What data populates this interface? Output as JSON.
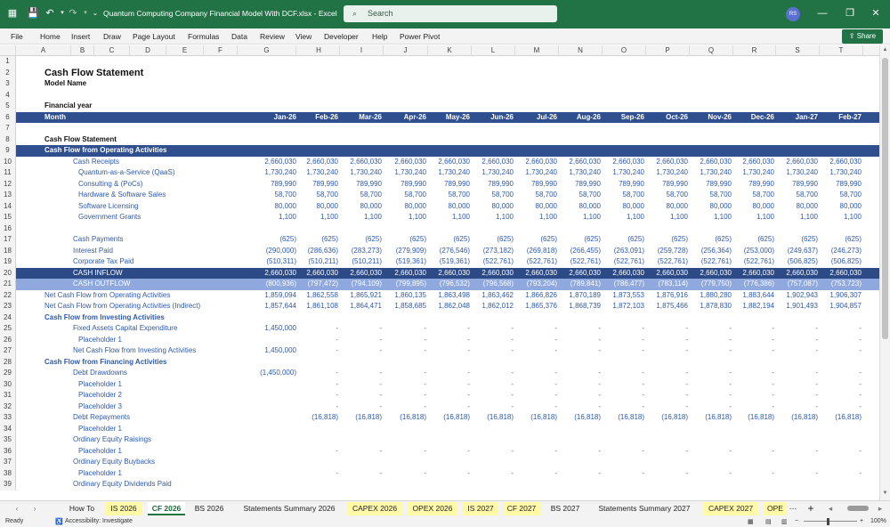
{
  "window": {
    "title": "Quantum Computing Company Financial Model With DCF.xlsx  -  Excel",
    "search_placeholder": "Search",
    "user_initials": "RS"
  },
  "menu": [
    "File",
    "Home",
    "Insert",
    "Draw",
    "Page Layout",
    "Formulas",
    "Data",
    "Review",
    "View",
    "Developer",
    "Help",
    "Power Pivot"
  ],
  "share_label": "Share",
  "columns": [
    "A",
    "B",
    "C",
    "D",
    "E",
    "F",
    "G",
    "H",
    "I",
    "J",
    "K",
    "L",
    "M",
    "N",
    "O",
    "P",
    "Q",
    "R",
    "S",
    "T"
  ],
  "months": [
    "Jan-26",
    "Feb-26",
    "Mar-26",
    "Apr-26",
    "May-26",
    "Jun-26",
    "Jul-26",
    "Aug-26",
    "Sep-26",
    "Oct-26",
    "Nov-26",
    "Dec-26",
    "Jan-27",
    "Feb-27"
  ],
  "rows": [
    {
      "n": "1",
      "label": "",
      "indent": 0,
      "style": "",
      "values": []
    },
    {
      "n": "2",
      "label": "Cash Flow Statement",
      "indent": 0,
      "style": "title",
      "values": []
    },
    {
      "n": "3",
      "label": "Model Name",
      "indent": 0,
      "style": "subtitle",
      "values": []
    },
    {
      "n": "4",
      "label": "",
      "indent": 0,
      "style": "",
      "values": []
    },
    {
      "n": "5",
      "label": "Financial year",
      "indent": 2,
      "style": "boldlabel",
      "values": []
    },
    {
      "n": "6",
      "label": "Month",
      "indent": 2,
      "style": "header",
      "values": []
    },
    {
      "n": "7",
      "label": "",
      "indent": 0,
      "style": "",
      "values": []
    },
    {
      "n": "8",
      "label": "Cash Flow Statement",
      "indent": 2,
      "style": "boldlabel",
      "values": []
    },
    {
      "n": "9",
      "label": "Cash Flow from Operating Activities",
      "indent": 2,
      "style": "section",
      "values": []
    },
    {
      "n": "10",
      "label": "Cash Receipts",
      "indent": 3,
      "style": "blue",
      "values": [
        "2,660,030",
        "2,660,030",
        "2,660,030",
        "2,660,030",
        "2,660,030",
        "2,660,030",
        "2,660,030",
        "2,660,030",
        "2,660,030",
        "2,660,030",
        "2,660,030",
        "2,660,030",
        "2,660,030",
        "2,660,030"
      ]
    },
    {
      "n": "11",
      "label": "Quantum-as-a-Service (QaaS)",
      "indent": 4,
      "style": "blue",
      "values": [
        "1,730,240",
        "1,730,240",
        "1,730,240",
        "1,730,240",
        "1,730,240",
        "1,730,240",
        "1,730,240",
        "1,730,240",
        "1,730,240",
        "1,730,240",
        "1,730,240",
        "1,730,240",
        "1,730,240",
        "1,730,240"
      ]
    },
    {
      "n": "12",
      "label": "Consulting & (PoCs)",
      "indent": 4,
      "style": "blue",
      "values": [
        "789,990",
        "789,990",
        "789,990",
        "789,990",
        "789,990",
        "789,990",
        "789,990",
        "789,990",
        "789,990",
        "789,990",
        "789,990",
        "789,990",
        "789,990",
        "789,990"
      ]
    },
    {
      "n": "13",
      "label": "Hardware & Software Sales",
      "indent": 4,
      "style": "blue",
      "values": [
        "58,700",
        "58,700",
        "58,700",
        "58,700",
        "58,700",
        "58,700",
        "58,700",
        "58,700",
        "58,700",
        "58,700",
        "58,700",
        "58,700",
        "58,700",
        "58,700"
      ]
    },
    {
      "n": "14",
      "label": "Software Licensing",
      "indent": 4,
      "style": "blue",
      "values": [
        "80,000",
        "80,000",
        "80,000",
        "80,000",
        "80,000",
        "80,000",
        "80,000",
        "80,000",
        "80,000",
        "80,000",
        "80,000",
        "80,000",
        "80,000",
        "80,000"
      ]
    },
    {
      "n": "15",
      "label": "Government Grants",
      "indent": 4,
      "style": "blue",
      "values": [
        "1,100",
        "1,100",
        "1,100",
        "1,100",
        "1,100",
        "1,100",
        "1,100",
        "1,100",
        "1,100",
        "1,100",
        "1,100",
        "1,100",
        "1,100",
        "1,100"
      ]
    },
    {
      "n": "16",
      "label": "",
      "indent": 0,
      "style": "",
      "values": []
    },
    {
      "n": "17",
      "label": "Cash Payments",
      "indent": 3,
      "style": "blue",
      "values": [
        "(625)",
        "(625)",
        "(625)",
        "(625)",
        "(625)",
        "(625)",
        "(625)",
        "(625)",
        "(625)",
        "(625)",
        "(625)",
        "(625)",
        "(625)",
        "(625)"
      ]
    },
    {
      "n": "18",
      "label": "Interest Paid",
      "indent": 3,
      "style": "blue",
      "values": [
        "(290,000)",
        "(286,636)",
        "(283,273)",
        "(279,909)",
        "(276,546)",
        "(273,182)",
        "(269,818)",
        "(266,455)",
        "(263,091)",
        "(259,728)",
        "(256,364)",
        "(253,000)",
        "(249,637)",
        "(246,273)"
      ]
    },
    {
      "n": "19",
      "label": "Corporate Tax Paid",
      "indent": 3,
      "style": "blue",
      "values": [
        "(510,311)",
        "(510,211)",
        "(510,211)",
        "(519,361)",
        "(519,361)",
        "(522,761)",
        "(522,761)",
        "(522,761)",
        "(522,761)",
        "(522,761)",
        "(522,761)",
        "(522,761)",
        "(506,825)",
        "(506,825)"
      ]
    },
    {
      "n": "20",
      "label": "CASH INFLOW",
      "indent": 3,
      "style": "dark",
      "values": [
        "2,660,030",
        "2,660,030",
        "2,660,030",
        "2,660,030",
        "2,660,030",
        "2,660,030",
        "2,660,030",
        "2,660,030",
        "2,660,030",
        "2,660,030",
        "2,660,030",
        "2,660,030",
        "2,660,030",
        "2,660,030"
      ]
    },
    {
      "n": "21",
      "label": "CASH OUTFLOW",
      "indent": 3,
      "style": "light",
      "values": [
        "(800,936)",
        "(797,472)",
        "(794,109)",
        "(799,895)",
        "(796,532)",
        "(796,568)",
        "(793,204)",
        "(789,841)",
        "(786,477)",
        "(783,114)",
        "(779,750)",
        "(776,386)",
        "(757,087)",
        "(753,723)"
      ]
    },
    {
      "n": "22",
      "label": "Net Cash Flow from Operating Activities",
      "indent": 2,
      "style": "blue",
      "values": [
        "1,859,094",
        "1,862,558",
        "1,865,921",
        "1,860,135",
        "1,863,498",
        "1,863,462",
        "1,866,826",
        "1,870,189",
        "1,873,553",
        "1,876,916",
        "1,880,280",
        "1,883,644",
        "1,902,943",
        "1,906,307"
      ]
    },
    {
      "n": "23",
      "label": "Net Cash Flow from Operating Activities (Indirect)",
      "indent": 2,
      "style": "blue",
      "values": [
        "1,857,644",
        "1,861,108",
        "1,864,471",
        "1,858,685",
        "1,862,048",
        "1,862,012",
        "1,865,376",
        "1,868,739",
        "1,872,103",
        "1,875,466",
        "1,878,830",
        "1,882,194",
        "1,901,493",
        "1,904,857"
      ]
    },
    {
      "n": "24",
      "label": "Cash Flow from Investing Activities",
      "indent": 2,
      "style": "bluebold",
      "values": []
    },
    {
      "n": "25",
      "label": "Fixed Assets Capital Expenditure",
      "indent": 3,
      "style": "blue",
      "values": [
        "1,450,000",
        "-",
        "-",
        "-",
        "-",
        "-",
        "-",
        "-",
        "-",
        "-",
        "-",
        "-",
        "-",
        "-"
      ]
    },
    {
      "n": "26",
      "label": "Placeholder 1",
      "indent": 4,
      "style": "blue",
      "values": [
        "",
        "-",
        "-",
        "-",
        "-",
        "-",
        "-",
        "-",
        "-",
        "-",
        "-",
        "-",
        "-",
        "-"
      ]
    },
    {
      "n": "27",
      "label": "Net Cash Flow from Investing Activities",
      "indent": 3,
      "style": "blue",
      "values": [
        "1,450,000",
        "-",
        "-",
        "-",
        "-",
        "-",
        "-",
        "-",
        "-",
        "-",
        "-",
        "-",
        "-",
        "-"
      ]
    },
    {
      "n": "28",
      "label": "Cash Flow from Financing Activities",
      "indent": 2,
      "style": "bluebold",
      "values": []
    },
    {
      "n": "29",
      "label": "Debt Drawdowns",
      "indent": 3,
      "style": "blue",
      "values": [
        "(1,450,000)",
        "-",
        "-",
        "-",
        "-",
        "-",
        "-",
        "-",
        "-",
        "-",
        "-",
        "-",
        "-",
        "-"
      ]
    },
    {
      "n": "30",
      "label": "Placeholder 1",
      "indent": 4,
      "style": "blue",
      "values": [
        "",
        "-",
        "-",
        "-",
        "-",
        "-",
        "-",
        "-",
        "-",
        "-",
        "-",
        "-",
        "-",
        "-"
      ]
    },
    {
      "n": "31",
      "label": "Placeholder 2",
      "indent": 4,
      "style": "blue",
      "values": [
        "",
        "-",
        "-",
        "-",
        "-",
        "-",
        "-",
        "-",
        "-",
        "-",
        "-",
        "-",
        "-",
        "-"
      ]
    },
    {
      "n": "32",
      "label": "Placeholder 3",
      "indent": 4,
      "style": "blue",
      "values": [
        "",
        "-",
        "-",
        "-",
        "-",
        "-",
        "-",
        "-",
        "-",
        "-",
        "-",
        "-",
        "-",
        "-"
      ]
    },
    {
      "n": "33",
      "label": "Debt Repayments",
      "indent": 3,
      "style": "blue",
      "values": [
        "",
        "(16,818)",
        "(16,818)",
        "(16,818)",
        "(16,818)",
        "(16,818)",
        "(16,818)",
        "(16,818)",
        "(16,818)",
        "(16,818)",
        "(16,818)",
        "(16,818)",
        "(16,818)",
        "(16,818)"
      ]
    },
    {
      "n": "34",
      "label": "Placeholder 1",
      "indent": 4,
      "style": "blue",
      "values": []
    },
    {
      "n": "35",
      "label": "Ordinary Equity Raisings",
      "indent": 3,
      "style": "blue",
      "values": []
    },
    {
      "n": "36",
      "label": "Placeholder 1",
      "indent": 4,
      "style": "blue",
      "values": [
        "",
        "-",
        "-",
        "-",
        "-",
        "-",
        "-",
        "-",
        "-",
        "-",
        "-",
        "-",
        "-",
        "-"
      ]
    },
    {
      "n": "37",
      "label": "Ordinary Equity Buybacks",
      "indent": 3,
      "style": "blue",
      "values": []
    },
    {
      "n": "38",
      "label": "Placeholder 1",
      "indent": 4,
      "style": "blue",
      "values": [
        "",
        "-",
        "-",
        "-",
        "-",
        "-",
        "-",
        "-",
        "-",
        "-",
        "-",
        "-",
        "-",
        "-"
      ]
    },
    {
      "n": "39",
      "label": "Ordinary Equity Dividends Paid",
      "indent": 3,
      "style": "blue",
      "values": []
    }
  ],
  "sheet_tabs": [
    {
      "label": "How To",
      "color": ""
    },
    {
      "label": "IS 2026",
      "color": "#fff9a8"
    },
    {
      "label": "CF 2026",
      "color": "active"
    },
    {
      "label": "BS 2026",
      "color": ""
    },
    {
      "label": "Statements Summary 2026",
      "color": ""
    },
    {
      "label": "CAPEX 2026",
      "color": "#fff9a8"
    },
    {
      "label": "OPEX 2026",
      "color": "#fff9a8"
    },
    {
      "label": "IS 2027",
      "color": "#fff9a8"
    },
    {
      "label": "CF 2027",
      "color": "#fff9a8"
    },
    {
      "label": "BS 2027",
      "color": ""
    },
    {
      "label": "Statements Summary 2027",
      "color": ""
    },
    {
      "label": "CAPEX 2027",
      "color": "#fff9a8"
    },
    {
      "label": "OPE",
      "color": "#fff9a8"
    }
  ],
  "status": {
    "ready": "Ready",
    "accessibility": "Accessibility: Investigate",
    "zoom": "100%"
  },
  "colors": {
    "excel_green": "#217346",
    "header_blue": "#2f4f8f",
    "dark_blue": "#2b4a86",
    "light_blue": "#8fa8dd",
    "value_blue": "#2e5aa6"
  }
}
